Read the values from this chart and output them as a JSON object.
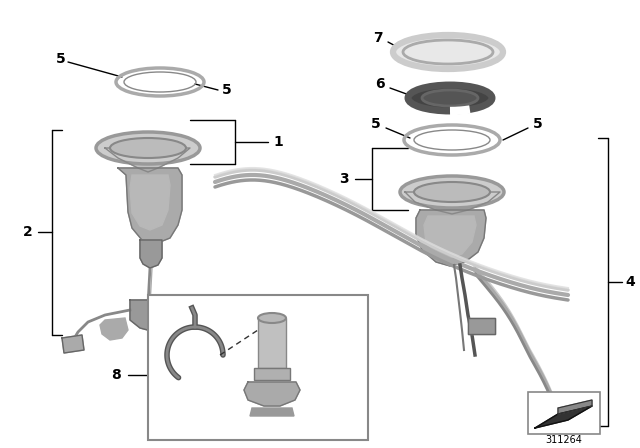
{
  "bg_color": "#ffffff",
  "part_number": "311264",
  "label_color": "#000000",
  "line_color": "#000000",
  "ring_color": "#aaaaaa",
  "ring_edge": "#666666",
  "dark_ring_color": "#333333",
  "pump_color": "#999999",
  "pipe_color": "#888888"
}
